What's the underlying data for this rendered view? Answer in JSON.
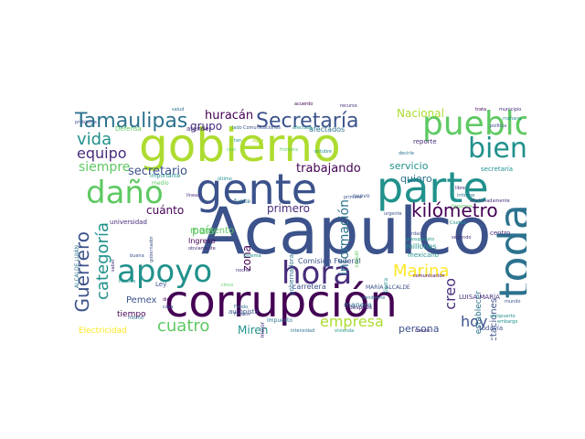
{
  "palette": [
    "#3b528b",
    "#21918c",
    "#5ec962",
    "#fde725",
    "#440154",
    "#2c728e",
    "#addc30",
    "#472d7b"
  ],
  "words": [
    {
      "text": "Acapulco",
      "color": "#3b528b"
    },
    {
      "text": "gobierno",
      "color": "#addc30"
    },
    {
      "text": "gente",
      "color": "#3b528b"
    },
    {
      "text": "parte",
      "color": "#21918c"
    },
    {
      "text": "corrupción",
      "color": "#440154"
    },
    {
      "text": "toda",
      "color": "#2c728e"
    },
    {
      "text": "pueblo",
      "color": "#5ec962"
    },
    {
      "text": "hora",
      "color": "#472d7b"
    },
    {
      "text": "apoyo",
      "color": "#21918c"
    },
    {
      "text": "daño",
      "color": "#5ec962"
    },
    {
      "text": "bien",
      "color": "#21918c"
    },
    {
      "text": "Tamaulipas",
      "color": "#2c728e"
    },
    {
      "text": "Secretaría",
      "color": "#3b528b"
    },
    {
      "text": "kilómetro",
      "color": "#440154"
    },
    {
      "text": "Guerrero",
      "color": "#3b528b"
    },
    {
      "text": "Marina",
      "color": "#fde725"
    },
    {
      "text": "categoría",
      "color": "#21918c"
    },
    {
      "text": "cuatro",
      "color": "#5ec962"
    },
    {
      "text": "vida",
      "color": "#21918c"
    },
    {
      "text": "equipo",
      "color": "#472d7b"
    },
    {
      "text": "empresa",
      "color": "#addc30"
    },
    {
      "text": "creo",
      "color": "#472d7b"
    },
    {
      "text": "hoy",
      "color": "#3b528b"
    },
    {
      "text": "información",
      "color": "#2c728e"
    },
    {
      "text": "siempre",
      "color": "#5ec962"
    },
    {
      "text": "secretario",
      "color": "#3b528b"
    },
    {
      "text": "trabajando",
      "color": "#440154"
    },
    {
      "text": "huracán",
      "color": "#440154"
    },
    {
      "text": "grupo",
      "color": "#472d7b"
    },
    {
      "text": "Nacional",
      "color": "#addc30"
    },
    {
      "text": "cuánto",
      "color": "#440154"
    },
    {
      "text": "primero",
      "color": "#472d7b"
    },
    {
      "text": "zona",
      "color": "#440154"
    },
    {
      "text": "país",
      "color": "#5ec962"
    },
    {
      "text": "Miren",
      "color": "#21918c"
    },
    {
      "text": "servicio",
      "color": "#21918c"
    },
    {
      "text": "quiero",
      "color": "#2c728e"
    },
    {
      "text": "persona",
      "color": "#3b528b"
    },
    {
      "text": "momento",
      "color": "#5ec962"
    },
    {
      "text": "Pemex",
      "color": "#3b528b"
    },
    {
      "text": "tiempo",
      "color": "#440154"
    },
    {
      "text": "Electricidad",
      "color": "#fde725"
    },
    {
      "text": "afectaciones",
      "color": "#3b528b"
    },
    {
      "text": "establecer",
      "color": "#2c728e"
    },
    {
      "text": "millones",
      "color": "#21918c"
    },
    {
      "text": "Comisión Federal",
      "color": "#3b528b"
    },
    {
      "text": "manera",
      "color": "#2c728e"
    },
    {
      "text": "carretera",
      "color": "#3b528b"
    },
    {
      "text": "Ingreso",
      "color": "#440154"
    },
    {
      "text": "universidad",
      "color": "#472d7b"
    },
    {
      "text": "gobernadora",
      "color": "#2c728e"
    },
    {
      "text": "mexicano",
      "color": "#21918c"
    },
    {
      "text": "autopista",
      "color": "#3b528b"
    },
    {
      "text": "Defensa",
      "color": "#5ec962"
    },
    {
      "text": "atender",
      "color": "#472d7b"
    },
    {
      "text": "afectados",
      "color": "#2c728e"
    },
    {
      "text": "reporte",
      "color": "#472d7b"
    },
    {
      "text": "secretaría",
      "color": "#21918c"
    },
    {
      "text": "LUISA MARÍA",
      "color": "#472d7b"
    },
    {
      "text": "MARÍA ALCALDE",
      "color": "#3b528b"
    },
    {
      "text": "ALCALDE LUJÁN",
      "color": "#2c728e"
    },
    {
      "text": "todavía",
      "color": "#3b528b"
    },
    {
      "text": "centro",
      "color": "#472d7b"
    },
    {
      "text": "Ley",
      "color": "#3b528b"
    },
    {
      "text": "impuesto",
      "color": "#2c728e"
    },
    {
      "text": "después",
      "color": "#472d7b"
    },
    {
      "text": "nuevo",
      "color": "#3b528b"
    },
    {
      "text": "fuerte",
      "color": "#2c728e"
    },
    {
      "text": "mejor",
      "color": "#472d7b"
    },
    {
      "text": "importante",
      "color": "#21918c"
    },
    {
      "text": "medio",
      "color": "#5ec962"
    },
    {
      "text": "gobernador",
      "color": "#3b528b"
    },
    {
      "text": "recurso",
      "color": "#472d7b"
    },
    {
      "text": "salud",
      "color": "#2c728e"
    },
    {
      "text": "acuerdo",
      "color": "#440154"
    },
    {
      "text": "Ciudad",
      "color": "#21918c"
    },
    {
      "text": "segundo",
      "color": "#472d7b"
    },
    {
      "text": "seguir",
      "color": "#5ec962"
    },
    {
      "text": "tierra",
      "color": "#21918c"
    },
    {
      "text": "política",
      "color": "#3b528b"
    },
    {
      "text": "mañana",
      "color": "#21918c"
    },
    {
      "text": "libre",
      "color": "#472d7b"
    },
    {
      "text": "pendiente",
      "color": "#2c728e"
    },
    {
      "text": "presupuesto",
      "color": "#21918c"
    },
    {
      "text": "verdad",
      "color": "#3b528b"
    },
    {
      "text": "comunicación",
      "color": "#440154"
    },
    {
      "text": "embargo",
      "color": "#21918c"
    },
    {
      "text": "mundo",
      "color": "#3b528b"
    },
    {
      "text": "Fondo",
      "color": "#2c728e"
    },
    {
      "text": "noche",
      "color": "#472d7b"
    },
    {
      "text": "cinco",
      "color": "#5ec962"
    },
    {
      "text": "vivienda",
      "color": "#21918c"
    },
    {
      "text": "intensidad",
      "color": "#2c728e"
    },
    {
      "text": "menos",
      "color": "#472d7b"
    },
    {
      "text": "casa",
      "color": "#3b528b"
    },
    {
      "text": "dio",
      "color": "#440154"
    },
    {
      "text": "mismo",
      "color": "#2c728e"
    },
    {
      "text": "hoteles",
      "color": "#21918c"
    },
    {
      "text": "buena",
      "color": "#3b528b"
    },
    {
      "text": "saber",
      "color": "#472d7b"
    },
    {
      "text": "lado",
      "color": "#2c728e"
    },
    {
      "text": "frontera",
      "color": "#5ec962"
    },
    {
      "text": "octubre",
      "color": "#21918c"
    },
    {
      "text": "Comunicaciones",
      "color": "#3b528b"
    },
    {
      "text": "afectada",
      "color": "#21918c"
    },
    {
      "text": "trata",
      "color": "#440154"
    },
    {
      "text": "municipio",
      "color": "#472d7b"
    },
    {
      "text": "decirle",
      "color": "#2c728e"
    },
    {
      "text": "último",
      "color": "#21918c"
    },
    {
      "text": "problema",
      "color": "#3b528b"
    },
    {
      "text": "casi",
      "color": "#5ec962"
    },
    {
      "text": "obviamente",
      "color": "#472d7b"
    },
    {
      "text": "Fondos",
      "color": "#3b528b"
    },
    {
      "text": "aeropuerto",
      "color": "#21918c"
    },
    {
      "text": "informe",
      "color": "#2c728e"
    },
    {
      "text": "afortunadamente",
      "color": "#472d7b"
    },
    {
      "text": "llegamos",
      "color": "#5ec962"
    },
    {
      "text": "sistema",
      "color": "#21918c"
    },
    {
      "text": "primera",
      "color": "#3b528b"
    },
    {
      "text": "tan",
      "color": "#21918c"
    },
    {
      "text": "agua",
      "color": "#addc30"
    },
    {
      "text": "líneas",
      "color": "#472d7b"
    },
    {
      "text": "urgente",
      "color": "#3b528b"
    }
  ]
}
